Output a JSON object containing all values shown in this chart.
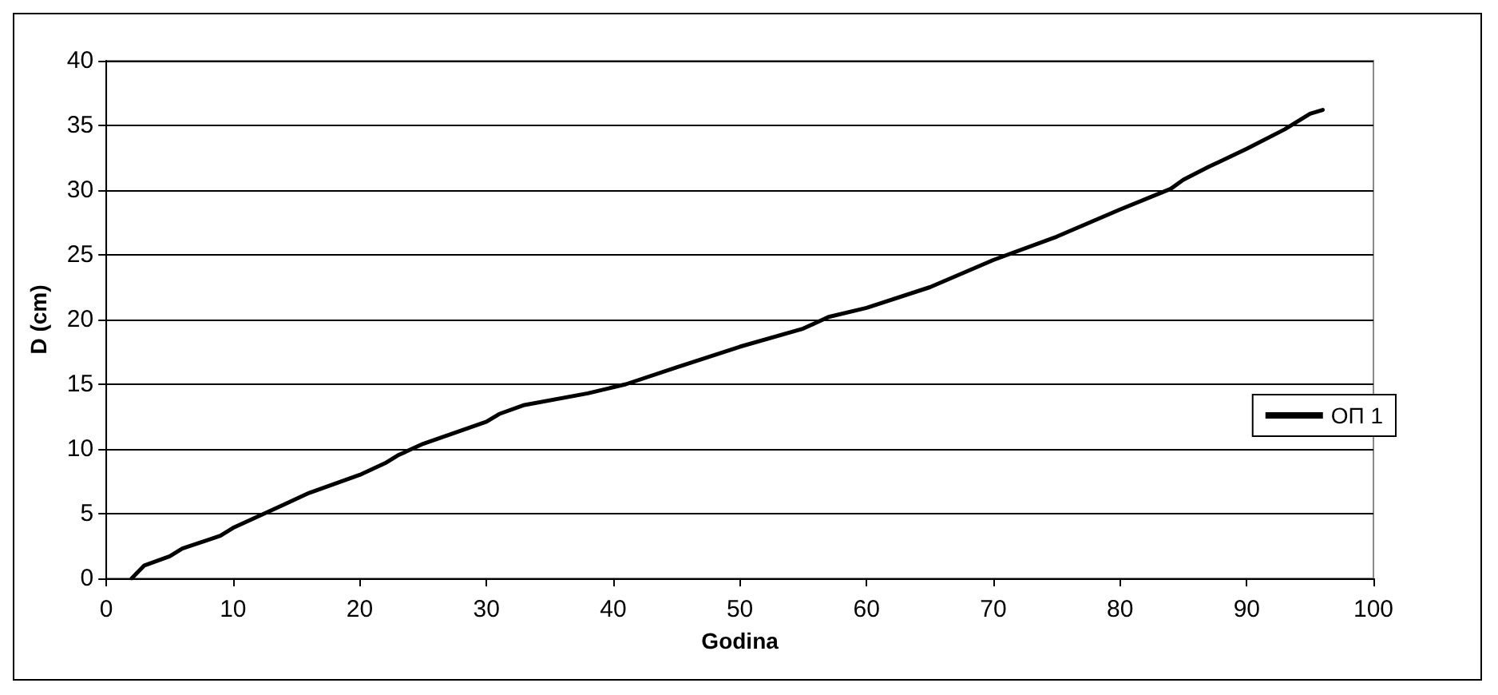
{
  "chart_data": {
    "type": "line",
    "xlabel": "Godina",
    "ylabel": "D (cm)",
    "x": [
      2,
      3,
      5,
      6,
      9,
      10,
      12,
      14,
      16,
      20,
      22,
      23,
      25,
      30,
      31,
      33,
      38,
      41,
      45,
      50,
      55,
      57,
      60,
      65,
      70,
      75,
      80,
      84,
      85,
      87,
      90,
      93,
      95,
      96
    ],
    "series": [
      {
        "name": "ОП 1",
        "color": "#000000",
        "values": [
          0,
          1,
          1.7,
          2.3,
          3.3,
          3.9,
          4.8,
          5.7,
          6.6,
          8.0,
          8.9,
          9.5,
          10.4,
          12.1,
          12.7,
          13.4,
          14.3,
          15.0,
          16.3,
          17.9,
          19.3,
          20.2,
          20.9,
          22.5,
          24.6,
          26.4,
          28.5,
          30.1,
          30.8,
          31.8,
          33.2,
          34.7,
          35.9,
          36.2
        ]
      }
    ],
    "xlim": [
      0,
      100
    ],
    "xticks": [
      0,
      10,
      20,
      30,
      40,
      50,
      60,
      70,
      80,
      90,
      100
    ],
    "ylim": [
      0,
      40
    ],
    "yticks": [
      0,
      5,
      10,
      15,
      20,
      25,
      30,
      35,
      40
    ],
    "grid": "y",
    "legend": "right",
    "marker": "none",
    "line_style": "solid"
  }
}
